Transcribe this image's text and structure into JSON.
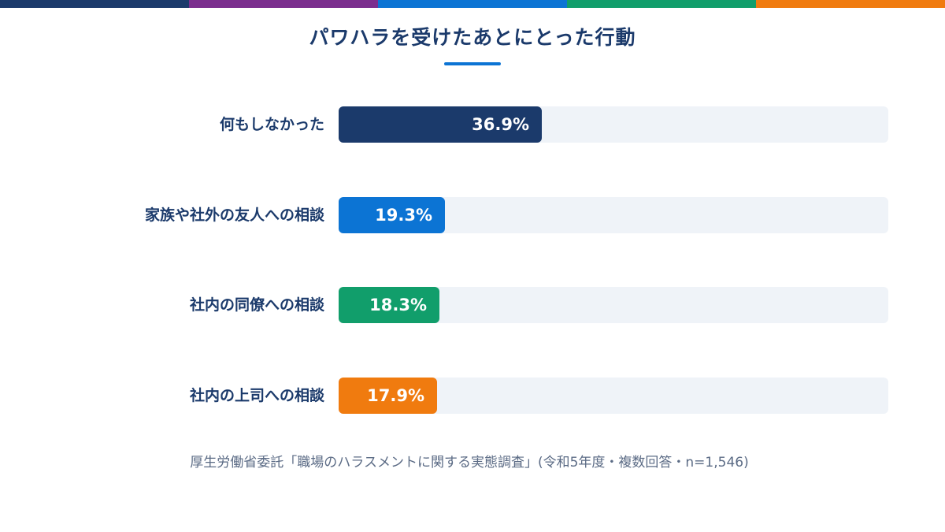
{
  "colors": {
    "navy": "#1b3a6b",
    "purple": "#7b2e8e",
    "blue": "#0c74d4",
    "green": "#119e6b",
    "orange": "#f07b0f",
    "track": "#eff3f8",
    "source_text": "#5b6b85"
  },
  "top_strip": [
    "#1b3a6b",
    "#7b2e8e",
    "#0c74d4",
    "#119e6b",
    "#f07b0f"
  ],
  "chart_data": {
    "type": "bar",
    "orientation": "horizontal",
    "title": "パワハラを受けたあとにとった行動",
    "categories": [
      "何もしなかった",
      "家族や社外の友人への相談",
      "社内の同僚への相談",
      "社内の上司への相談"
    ],
    "values": [
      36.9,
      19.3,
      18.3,
      17.9
    ],
    "value_labels": [
      "36.9%",
      "19.3%",
      "18.3%",
      "17.9%"
    ],
    "bar_colors": [
      "#1b3a6b",
      "#0c74d4",
      "#119e6b",
      "#f07b0f"
    ],
    "xlim": [
      0,
      100
    ],
    "grid": false,
    "legend": "none",
    "source": "厚生労働省委託「職場のハラスメントに関する実態調査」(令和5年度・複数回答・n=1,546)"
  }
}
